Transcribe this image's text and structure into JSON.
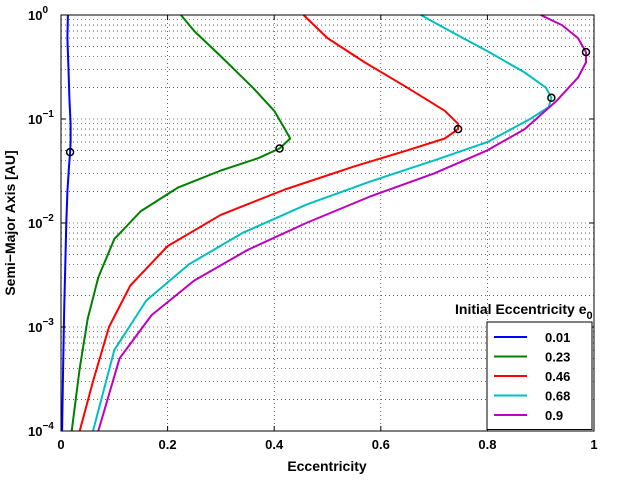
{
  "chart_data": {
    "type": "line",
    "xlabel": "Eccentricity",
    "ylabel": "Semi−Major Axis [AU]",
    "xlim": [
      0,
      1
    ],
    "ylim": [
      0.0001,
      1
    ],
    "yscale": "log",
    "grid": true,
    "x_ticks": [
      "0",
      "0.2",
      "0.4",
      "0.6",
      "0.8",
      "1"
    ],
    "y_ticks": [
      {
        "base": "10",
        "exp": "−4",
        "value": 0.0001
      },
      {
        "base": "10",
        "exp": "−3",
        "value": 0.001
      },
      {
        "base": "10",
        "exp": "−2",
        "value": 0.01
      },
      {
        "base": "10",
        "exp": "−1",
        "value": 0.1
      },
      {
        "base": "10",
        "exp": "0",
        "value": 1
      }
    ],
    "legend": {
      "title": "Initial Eccentricity e",
      "title_subscript": "0",
      "position": "lower-right"
    },
    "series": [
      {
        "name": "0.01",
        "color": "#0000ff",
        "marker": {
          "x": 0.017,
          "y": 0.048
        },
        "points": [
          [
            0.013,
            1
          ],
          [
            0.012,
            0.6
          ],
          [
            0.014,
            0.3
          ],
          [
            0.016,
            0.15
          ],
          [
            0.018,
            0.09
          ],
          [
            0.018,
            0.06
          ],
          [
            0.017,
            0.048
          ],
          [
            0.015,
            0.035
          ],
          [
            0.012,
            0.02
          ],
          [
            0.01,
            0.01
          ],
          [
            0.008,
            0.004
          ],
          [
            0.006,
            0.0015
          ],
          [
            0.004,
            0.0004
          ],
          [
            0.002,
            0.0001
          ]
        ]
      },
      {
        "name": "0.23",
        "color": "#008000",
        "marker": {
          "x": 0.41,
          "y": 0.052
        },
        "points": [
          [
            0.225,
            1
          ],
          [
            0.25,
            0.7
          ],
          [
            0.3,
            0.4
          ],
          [
            0.36,
            0.2
          ],
          [
            0.4,
            0.12
          ],
          [
            0.42,
            0.08
          ],
          [
            0.43,
            0.065
          ],
          [
            0.41,
            0.052
          ],
          [
            0.37,
            0.042
          ],
          [
            0.3,
            0.032
          ],
          [
            0.22,
            0.022
          ],
          [
            0.15,
            0.013
          ],
          [
            0.1,
            0.007
          ],
          [
            0.07,
            0.003
          ],
          [
            0.05,
            0.0012
          ],
          [
            0.035,
            0.0004
          ],
          [
            0.02,
            0.0001
          ]
        ]
      },
      {
        "name": "0.46",
        "color": "#ff0000",
        "marker": {
          "x": 0.745,
          "y": 0.08
        },
        "points": [
          [
            0.455,
            1
          ],
          [
            0.5,
            0.6
          ],
          [
            0.57,
            0.35
          ],
          [
            0.65,
            0.2
          ],
          [
            0.72,
            0.12
          ],
          [
            0.745,
            0.09
          ],
          [
            0.745,
            0.08
          ],
          [
            0.72,
            0.065
          ],
          [
            0.65,
            0.05
          ],
          [
            0.55,
            0.035
          ],
          [
            0.42,
            0.021
          ],
          [
            0.3,
            0.012
          ],
          [
            0.2,
            0.006
          ],
          [
            0.13,
            0.0025
          ],
          [
            0.09,
            0.001
          ],
          [
            0.06,
            0.0003
          ],
          [
            0.035,
            0.0001
          ]
        ]
      },
      {
        "name": "0.68",
        "color": "#00bfbf",
        "marker": {
          "x": 0.92,
          "y": 0.16
        },
        "points": [
          [
            0.675,
            1
          ],
          [
            0.73,
            0.7
          ],
          [
            0.8,
            0.45
          ],
          [
            0.87,
            0.28
          ],
          [
            0.91,
            0.2
          ],
          [
            0.92,
            0.16
          ],
          [
            0.915,
            0.13
          ],
          [
            0.88,
            0.1
          ],
          [
            0.8,
            0.06
          ],
          [
            0.7,
            0.04
          ],
          [
            0.58,
            0.025
          ],
          [
            0.46,
            0.015
          ],
          [
            0.34,
            0.008
          ],
          [
            0.24,
            0.004
          ],
          [
            0.16,
            0.0018
          ],
          [
            0.1,
            0.0006
          ],
          [
            0.06,
            0.0001
          ]
        ]
      },
      {
        "name": "0.9",
        "color": "#bf00bf",
        "marker": {
          "x": 0.985,
          "y": 0.44
        },
        "points": [
          [
            0.9,
            1
          ],
          [
            0.94,
            0.8
          ],
          [
            0.97,
            0.6
          ],
          [
            0.985,
            0.44
          ],
          [
            0.985,
            0.35
          ],
          [
            0.97,
            0.25
          ],
          [
            0.93,
            0.15
          ],
          [
            0.87,
            0.08
          ],
          [
            0.8,
            0.05
          ],
          [
            0.7,
            0.03
          ],
          [
            0.58,
            0.018
          ],
          [
            0.46,
            0.01
          ],
          [
            0.35,
            0.0055
          ],
          [
            0.25,
            0.0028
          ],
          [
            0.17,
            0.0013
          ],
          [
            0.11,
            0.0005
          ],
          [
            0.07,
            0.0001
          ]
        ]
      }
    ]
  }
}
